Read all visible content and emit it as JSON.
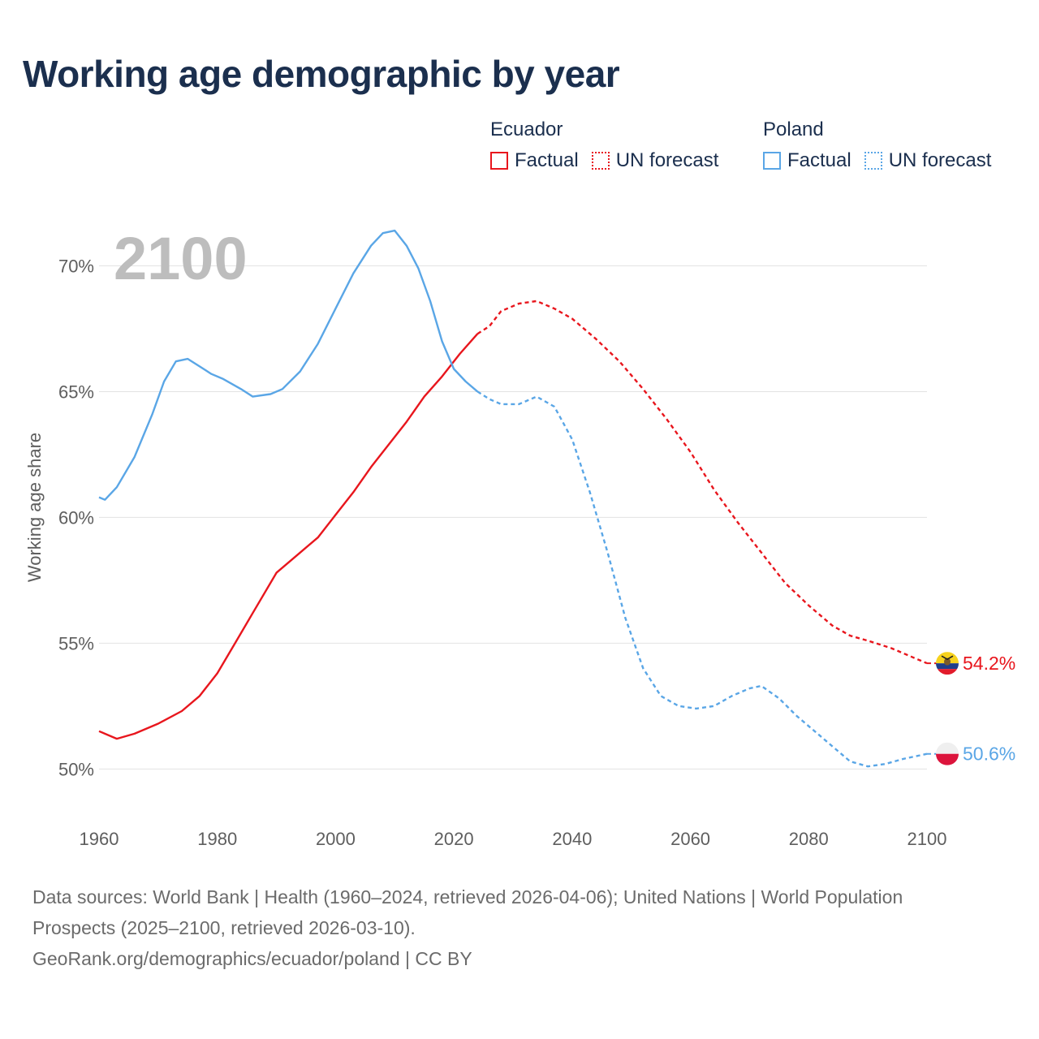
{
  "title": "Working age demographic by year",
  "legend": {
    "groups": [
      {
        "country": "Ecuador",
        "color": "#e8161d",
        "factual_label": "Factual",
        "forecast_label": "UN forecast"
      },
      {
        "country": "Poland",
        "color": "#5aa6e6",
        "factual_label": "Factual",
        "forecast_label": "UN forecast"
      }
    ]
  },
  "source": {
    "line1": "Data sources: World Bank | Health (1960–2024, retrieved 2026-04-06); United Nations | World Population Prospects (2025–2100, retrieved 2026-03-10).",
    "line2": "GeoRank.org/demographics/ecuador/poland | CC BY"
  },
  "chart_data": {
    "type": "line",
    "title": "Working age demographic by year",
    "year_label": "2100",
    "xlabel": "",
    "ylabel": "Working age share",
    "xlim": [
      1960,
      2100
    ],
    "ylim": [
      48.3,
      72.5
    ],
    "x_ticks": [
      1960,
      1980,
      2000,
      2020,
      2040,
      2060,
      2080,
      2100
    ],
    "y_ticks": [
      50,
      55,
      60,
      65,
      70
    ],
    "y_tick_labels": [
      "50%",
      "55%",
      "60%",
      "65%",
      "70%"
    ],
    "grid": true,
    "forecast_start": 2024,
    "series": [
      {
        "name": "Ecuador",
        "color": "#e8161d",
        "end_label": "54.2%",
        "flag_colors": [
          "#f6d21e",
          "#1f3e8a",
          "#e21b2b"
        ],
        "points": [
          [
            1960,
            51.5
          ],
          [
            1963,
            51.2
          ],
          [
            1966,
            51.4
          ],
          [
            1970,
            51.8
          ],
          [
            1974,
            52.3
          ],
          [
            1977,
            52.9
          ],
          [
            1980,
            53.8
          ],
          [
            1983,
            55.0
          ],
          [
            1986,
            56.2
          ],
          [
            1990,
            57.8
          ],
          [
            1994,
            58.6
          ],
          [
            1997,
            59.2
          ],
          [
            2000,
            60.1
          ],
          [
            2003,
            61.0
          ],
          [
            2006,
            62.0
          ],
          [
            2009,
            62.9
          ],
          [
            2012,
            63.8
          ],
          [
            2015,
            64.8
          ],
          [
            2018,
            65.6
          ],
          [
            2021,
            66.5
          ],
          [
            2024,
            67.3
          ],
          [
            2026,
            67.6
          ],
          [
            2028,
            68.2
          ],
          [
            2031,
            68.5
          ],
          [
            2034,
            68.6
          ],
          [
            2037,
            68.3
          ],
          [
            2040,
            67.9
          ],
          [
            2044,
            67.1
          ],
          [
            2048,
            66.2
          ],
          [
            2052,
            65.1
          ],
          [
            2056,
            63.9
          ],
          [
            2060,
            62.6
          ],
          [
            2064,
            61.1
          ],
          [
            2068,
            59.8
          ],
          [
            2072,
            58.6
          ],
          [
            2076,
            57.4
          ],
          [
            2080,
            56.5
          ],
          [
            2084,
            55.7
          ],
          [
            2087,
            55.3
          ],
          [
            2090,
            55.1
          ],
          [
            2094,
            54.8
          ],
          [
            2098,
            54.4
          ],
          [
            2100,
            54.2
          ]
        ]
      },
      {
        "name": "Poland",
        "color": "#5aa6e6",
        "end_label": "50.6%",
        "flag_colors": [
          "#efefef",
          "#dc143c"
        ],
        "points": [
          [
            1960,
            60.8
          ],
          [
            1961,
            60.7
          ],
          [
            1963,
            61.2
          ],
          [
            1966,
            62.4
          ],
          [
            1969,
            64.1
          ],
          [
            1971,
            65.4
          ],
          [
            1973,
            66.2
          ],
          [
            1975,
            66.3
          ],
          [
            1977,
            66.0
          ],
          [
            1979,
            65.7
          ],
          [
            1981,
            65.5
          ],
          [
            1984,
            65.1
          ],
          [
            1986,
            64.8
          ],
          [
            1989,
            64.9
          ],
          [
            1991,
            65.1
          ],
          [
            1994,
            65.8
          ],
          [
            1997,
            66.9
          ],
          [
            2000,
            68.3
          ],
          [
            2003,
            69.7
          ],
          [
            2006,
            70.8
          ],
          [
            2008,
            71.3
          ],
          [
            2010,
            71.4
          ],
          [
            2012,
            70.8
          ],
          [
            2014,
            69.9
          ],
          [
            2016,
            68.6
          ],
          [
            2018,
            67.0
          ],
          [
            2020,
            65.9
          ],
          [
            2022,
            65.4
          ],
          [
            2024,
            65.0
          ],
          [
            2026,
            64.7
          ],
          [
            2028,
            64.5
          ],
          [
            2031,
            64.5
          ],
          [
            2034,
            64.8
          ],
          [
            2037,
            64.4
          ],
          [
            2040,
            63.1
          ],
          [
            2043,
            61.0
          ],
          [
            2046,
            58.6
          ],
          [
            2049,
            56.0
          ],
          [
            2052,
            54.0
          ],
          [
            2055,
            52.9
          ],
          [
            2058,
            52.5
          ],
          [
            2061,
            52.4
          ],
          [
            2064,
            52.5
          ],
          [
            2067,
            52.9
          ],
          [
            2070,
            53.2
          ],
          [
            2072,
            53.3
          ],
          [
            2075,
            52.8
          ],
          [
            2078,
            52.1
          ],
          [
            2081,
            51.5
          ],
          [
            2084,
            50.9
          ],
          [
            2087,
            50.3
          ],
          [
            2090,
            50.1
          ],
          [
            2093,
            50.2
          ],
          [
            2096,
            50.4
          ],
          [
            2100,
            50.6
          ]
        ]
      }
    ]
  }
}
